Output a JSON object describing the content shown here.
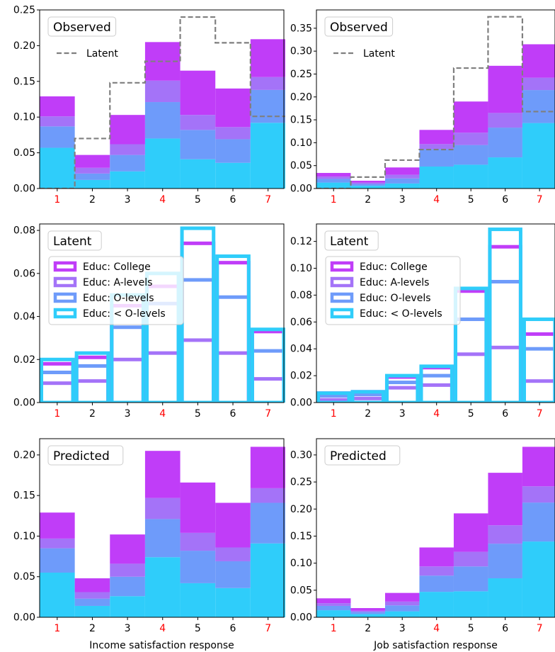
{
  "colors": {
    "college": "#c03df8",
    "alevels": "#a473f8",
    "olevels": "#6e9bfa",
    "below_olevels": "#2fcdfa",
    "latent_line": "#7f7f7f",
    "highlight_tick": "#ff0000",
    "axis": "#000000"
  },
  "chart_data": [
    {
      "id": "observed-income",
      "row": 0,
      "col": 0,
      "type": "bar",
      "title": "Observed",
      "categories": [
        "1",
        "2",
        "3",
        "4",
        "5",
        "6",
        "7"
      ],
      "highlight_categories": [
        "1",
        "4",
        "7"
      ],
      "ylim": [
        0,
        0.25
      ],
      "yticks": [
        "0.00",
        "0.05",
        "0.10",
        "0.15",
        "0.20",
        "0.25"
      ],
      "series": [
        {
          "name": "Educ: < O-levels",
          "values": [
            0.057,
            0.012,
            0.024,
            0.07,
            0.041,
            0.036,
            0.092
          ]
        },
        {
          "name": "Educ: O-levels",
          "values": [
            0.03,
            0.009,
            0.023,
            0.051,
            0.041,
            0.033,
            0.046
          ]
        },
        {
          "name": "Educ: A-levels",
          "values": [
            0.014,
            0.008,
            0.015,
            0.03,
            0.021,
            0.017,
            0.018
          ]
        },
        {
          "name": "Educ: College",
          "values": [
            0.028,
            0.018,
            0.041,
            0.054,
            0.062,
            0.054,
            0.053
          ]
        }
      ],
      "latent_step": {
        "label": "Latent",
        "values": [
          0.0,
          0.07,
          0.148,
          0.178,
          0.24,
          0.204,
          0.101
        ]
      },
      "xlabel": "",
      "ylabel": ""
    },
    {
      "id": "observed-job",
      "row": 0,
      "col": 1,
      "type": "bar",
      "title": "Observed",
      "categories": [
        "1",
        "2",
        "3",
        "4",
        "5",
        "6",
        "7"
      ],
      "highlight_categories": [
        "1",
        "4",
        "7"
      ],
      "ylim": [
        0,
        0.39
      ],
      "yticks": [
        "0.00",
        "0.05",
        "0.10",
        "0.15",
        "0.20",
        "0.25",
        "0.30",
        "0.35"
      ],
      "series": [
        {
          "name": "Educ: < O-levels",
          "values": [
            0.013,
            0.006,
            0.011,
            0.048,
            0.052,
            0.068,
            0.143
          ]
        },
        {
          "name": "Educ: O-levels",
          "values": [
            0.008,
            0.004,
            0.011,
            0.038,
            0.043,
            0.065,
            0.072
          ]
        },
        {
          "name": "Educ: A-levels",
          "values": [
            0.005,
            0.003,
            0.008,
            0.011,
            0.027,
            0.032,
            0.027
          ]
        },
        {
          "name": "Educ: College",
          "values": [
            0.008,
            0.004,
            0.016,
            0.031,
            0.068,
            0.103,
            0.073
          ]
        }
      ],
      "latent_step": {
        "label": "Latent",
        "values": [
          0.0,
          0.025,
          0.062,
          0.085,
          0.263,
          0.375,
          0.168
        ]
      },
      "xlabel": "",
      "ylabel": ""
    },
    {
      "id": "latent-income",
      "row": 1,
      "col": 0,
      "type": "bar",
      "title": "Latent",
      "categories": [
        "1",
        "2",
        "3",
        "4",
        "5",
        "6",
        "7"
      ],
      "highlight_categories": [
        "1",
        "4",
        "7"
      ],
      "ylim": [
        0,
        0.083
      ],
      "yticks": [
        "0.00",
        "0.02",
        "0.04",
        "0.06",
        "0.08"
      ],
      "series": [
        {
          "name": "Educ: College",
          "values": [
            0.018,
            0.021,
            0.045,
            0.054,
            0.074,
            0.065,
            0.033
          ]
        },
        {
          "name": "Educ: A-levels",
          "values": [
            0.009,
            0.01,
            0.02,
            0.023,
            0.029,
            0.023,
            0.011
          ]
        },
        {
          "name": "Educ: O-levels",
          "values": [
            0.014,
            0.017,
            0.035,
            0.046,
            0.057,
            0.049,
            0.024
          ]
        },
        {
          "name": "Educ: < O-levels",
          "values": [
            0.02,
            0.023,
            0.05,
            0.06,
            0.081,
            0.068,
            0.034
          ]
        }
      ],
      "xlabel": "",
      "ylabel": ""
    },
    {
      "id": "latent-job",
      "row": 1,
      "col": 1,
      "type": "bar",
      "title": "Latent",
      "categories": [
        "1",
        "2",
        "3",
        "4",
        "5",
        "6",
        "7"
      ],
      "highlight_categories": [
        "1",
        "4",
        "7"
      ],
      "ylim": [
        0,
        0.133
      ],
      "yticks": [
        "0.00",
        "0.02",
        "0.04",
        "0.06",
        "0.08",
        "0.10",
        "0.12"
      ],
      "series": [
        {
          "name": "Educ: College",
          "values": [
            0.007,
            0.008,
            0.019,
            0.026,
            0.083,
            0.116,
            0.051
          ]
        },
        {
          "name": "Educ: A-levels",
          "values": [
            0.002,
            0.003,
            0.011,
            0.013,
            0.036,
            0.041,
            0.016
          ]
        },
        {
          "name": "Educ: O-levels",
          "values": [
            0.005,
            0.006,
            0.015,
            0.02,
            0.062,
            0.09,
            0.04
          ]
        },
        {
          "name": "Educ: < O-levels",
          "values": [
            0.007,
            0.008,
            0.02,
            0.027,
            0.085,
            0.129,
            0.062
          ]
        }
      ],
      "xlabel": "",
      "ylabel": ""
    },
    {
      "id": "predicted-income",
      "row": 2,
      "col": 0,
      "type": "bar",
      "title": "Predicted",
      "categories": [
        "1",
        "2",
        "3",
        "4",
        "5",
        "6",
        "7"
      ],
      "highlight_categories": [
        "1",
        "4",
        "7"
      ],
      "ylim": [
        0,
        0.22
      ],
      "yticks": [
        "0.00",
        "0.05",
        "0.10",
        "0.15",
        "0.20"
      ],
      "series": [
        {
          "name": "Educ: < O-levels",
          "values": [
            0.055,
            0.014,
            0.026,
            0.074,
            0.042,
            0.036,
            0.091
          ]
        },
        {
          "name": "Educ: O-levels",
          "values": [
            0.03,
            0.009,
            0.024,
            0.047,
            0.04,
            0.033,
            0.05
          ]
        },
        {
          "name": "Educ: A-levels",
          "values": [
            0.012,
            0.008,
            0.016,
            0.026,
            0.022,
            0.017,
            0.018
          ]
        },
        {
          "name": "Educ: College",
          "values": [
            0.032,
            0.017,
            0.036,
            0.058,
            0.062,
            0.055,
            0.051
          ]
        }
      ],
      "xlabel": "Income satisfaction response",
      "ylabel": ""
    },
    {
      "id": "predicted-job",
      "row": 2,
      "col": 1,
      "type": "bar",
      "title": "Predicted",
      "categories": [
        "1",
        "2",
        "3",
        "4",
        "5",
        "6",
        "7"
      ],
      "highlight_categories": [
        "1",
        "4",
        "7"
      ],
      "ylim": [
        0,
        0.33
      ],
      "yticks": [
        "0.00",
        "0.05",
        "0.10",
        "0.15",
        "0.20",
        "0.25",
        "0.30"
      ],
      "series": [
        {
          "name": "Educ: < O-levels",
          "values": [
            0.013,
            0.006,
            0.011,
            0.047,
            0.048,
            0.072,
            0.14
          ]
        },
        {
          "name": "Educ: O-levels",
          "values": [
            0.008,
            0.004,
            0.011,
            0.03,
            0.046,
            0.064,
            0.072
          ]
        },
        {
          "name": "Educ: A-levels",
          "values": [
            0.005,
            0.002,
            0.007,
            0.017,
            0.027,
            0.034,
            0.03
          ]
        },
        {
          "name": "Educ: College",
          "values": [
            0.009,
            0.005,
            0.016,
            0.035,
            0.071,
            0.097,
            0.073
          ]
        }
      ],
      "xlabel": "Job satisfaction response",
      "ylabel": ""
    }
  ]
}
